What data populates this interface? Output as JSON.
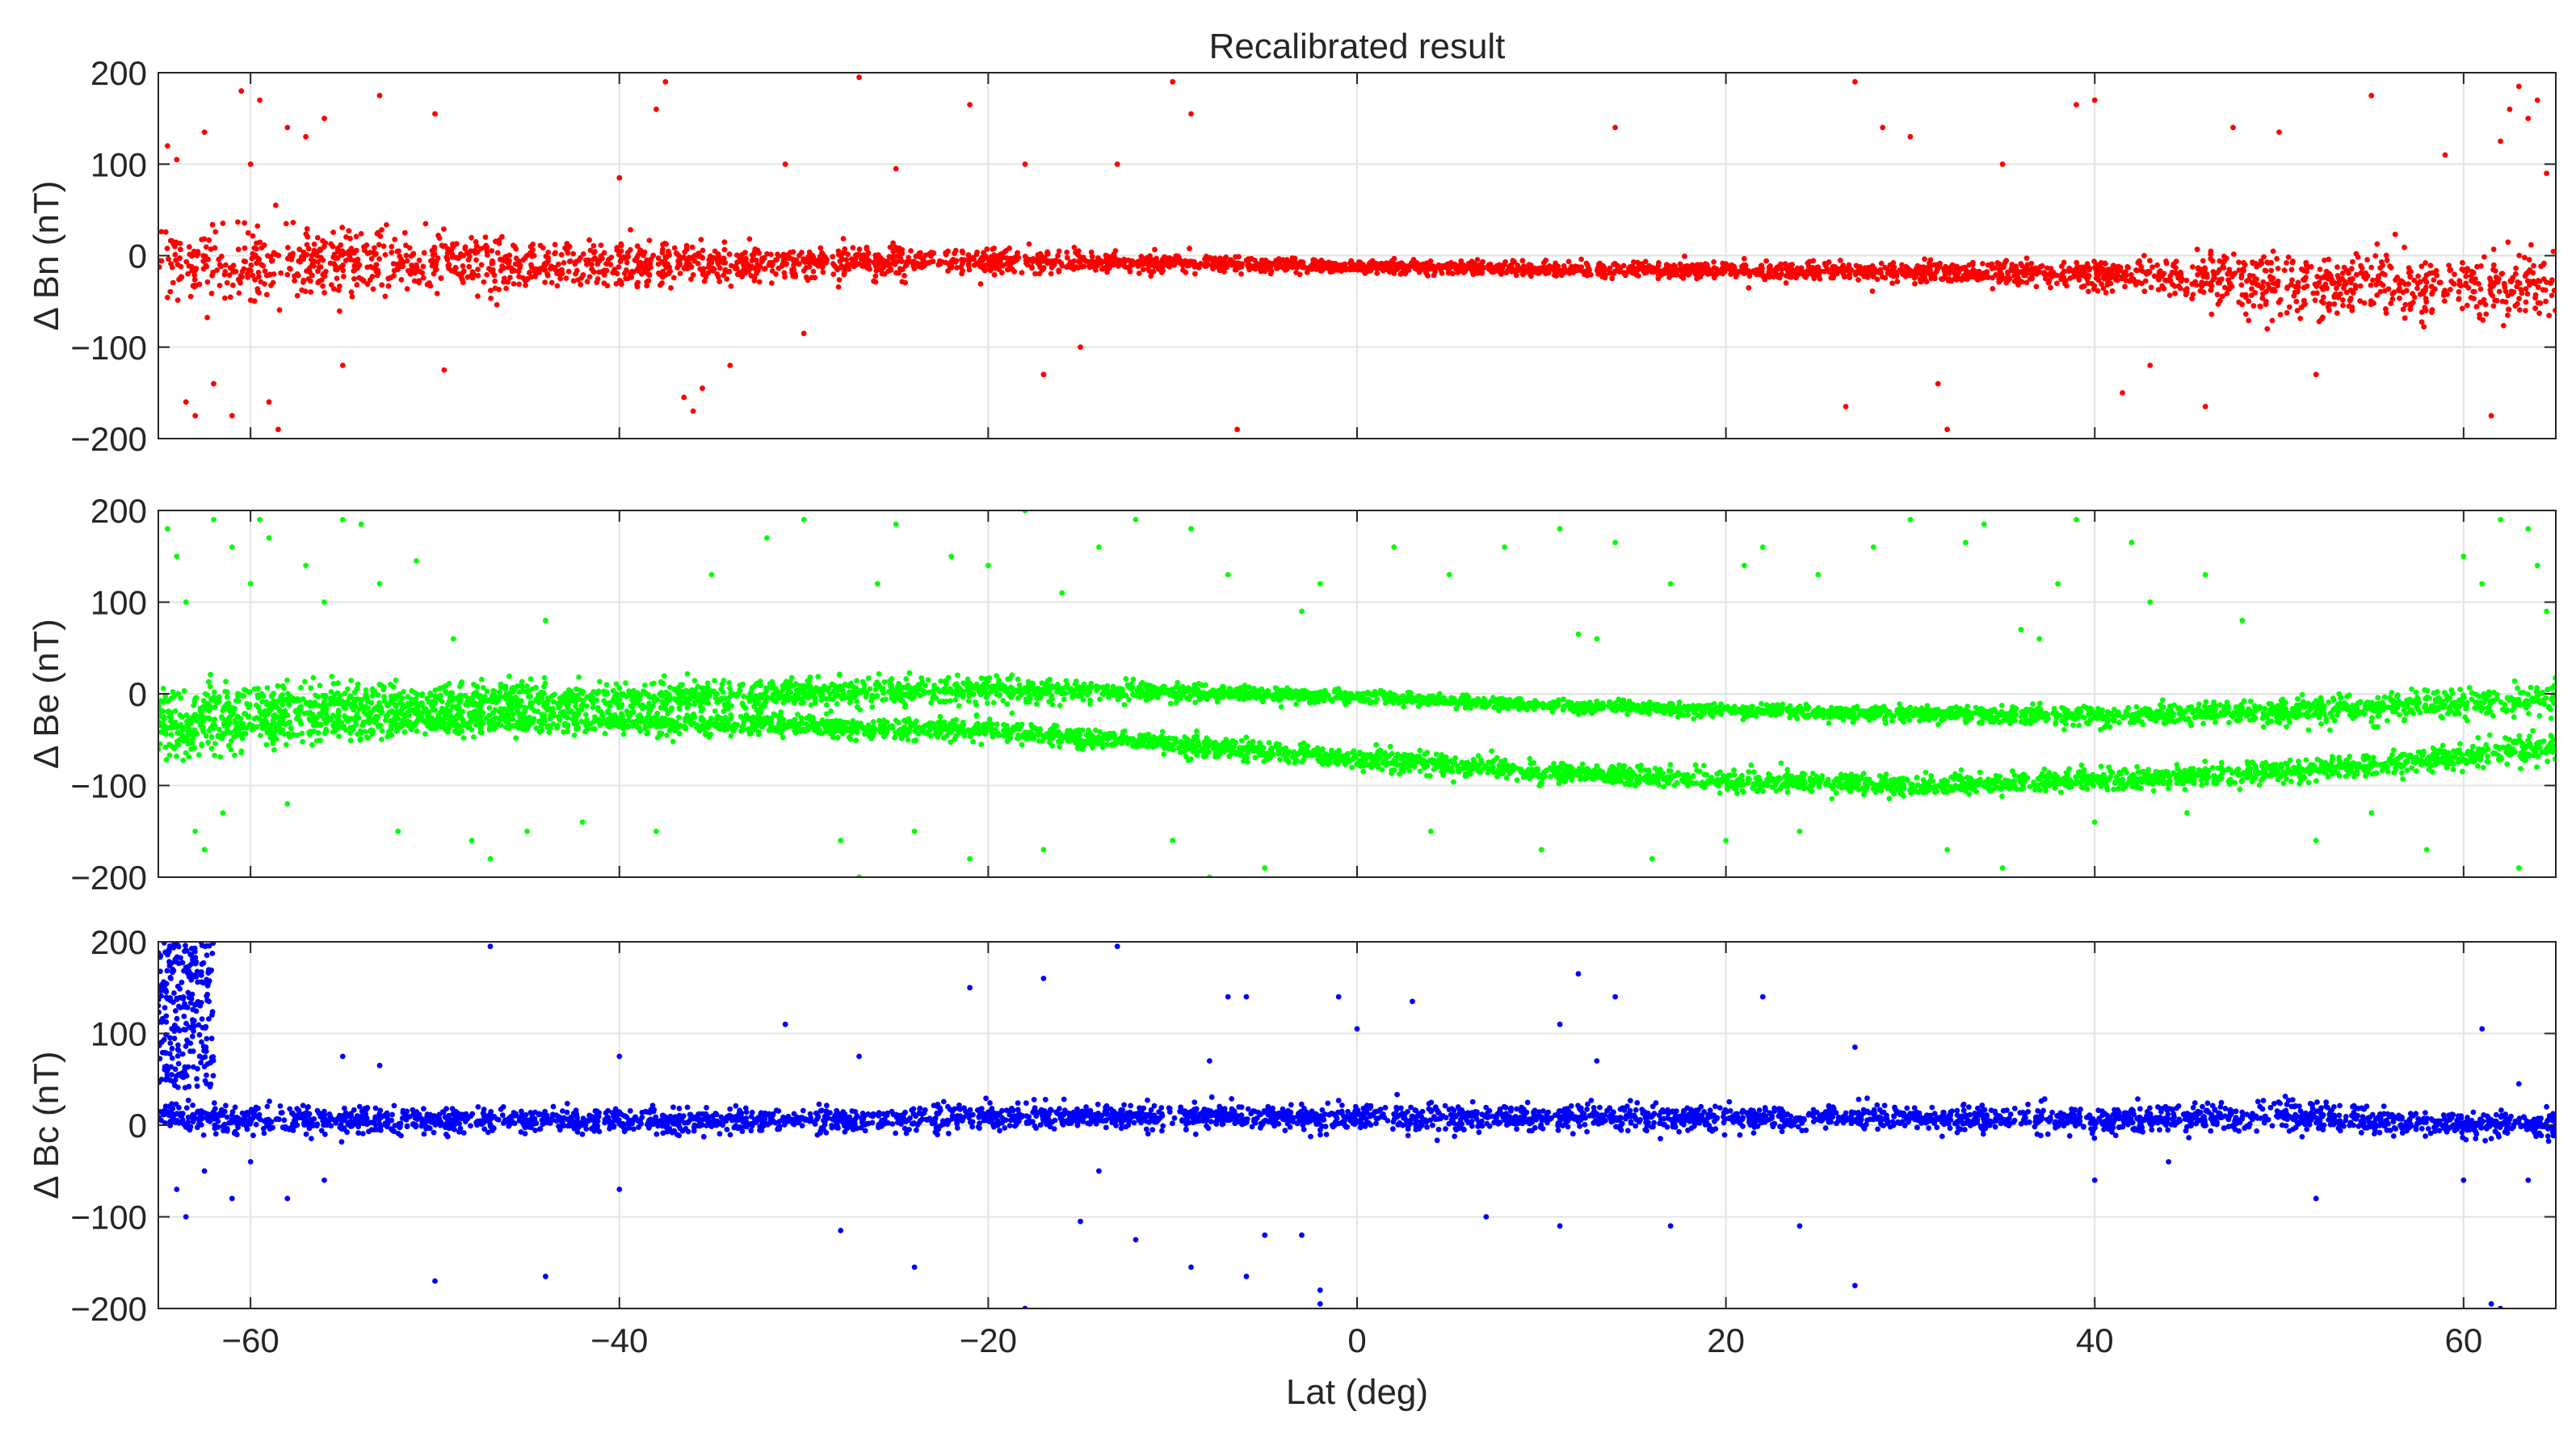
{
  "figure": {
    "title": "Recalibrated result",
    "xlabel": "Lat (deg)"
  },
  "chart_data": [
    {
      "type": "scatter",
      "title": "Recalibrated result",
      "xlabel": "",
      "ylabel": "Δ Bn (nT)",
      "xlim": [
        -65,
        65
      ],
      "ylim": [
        -200,
        200
      ],
      "xticks": [
        -60,
        -40,
        -20,
        0,
        20,
        40,
        60
      ],
      "xtick_labels": [
        "",
        "",
        "",
        "",
        "",
        "",
        ""
      ],
      "yticks": [
        -200,
        -100,
        0,
        100,
        200
      ],
      "ytick_labels": [
        "−200",
        "−100",
        "0",
        "100",
        "200"
      ],
      "grid": true,
      "color": "#ff0000",
      "series": [
        {
          "trend_lat": [
            -65,
            -60,
            -50,
            -40,
            -30,
            -20,
            -10,
            0,
            10,
            20,
            30,
            40,
            45,
            50,
            55,
            60,
            65
          ],
          "trend_center": [
            -12,
            -10,
            -8,
            -10,
            -8,
            -5,
            -8,
            -12,
            -15,
            -16,
            -18,
            -20,
            -25,
            -30,
            -30,
            -35,
            -30
          ],
          "band_halfwidth": [
            40,
            35,
            30,
            22,
            16,
            12,
            8,
            6,
            6,
            8,
            10,
            14,
            20,
            30,
            30,
            32,
            30
          ],
          "outliers": [
            [
              -64.5,
              120
            ],
            [
              -64,
              105
            ],
            [
              -63.5,
              -160
            ],
            [
              -63,
              -175
            ],
            [
              -62.5,
              135
            ],
            [
              -62,
              -140
            ],
            [
              -61,
              -175
            ],
            [
              -60.5,
              180
            ],
            [
              -60,
              100
            ],
            [
              -59.5,
              170
            ],
            [
              -59,
              -160
            ],
            [
              -58.5,
              -190
            ],
            [
              -58,
              140
            ],
            [
              -57,
              130
            ],
            [
              -56,
              150
            ],
            [
              -55,
              -120
            ],
            [
              -53,
              175
            ],
            [
              -50,
              155
            ],
            [
              -49.5,
              -125
            ],
            [
              -40,
              85
            ],
            [
              -38,
              160
            ],
            [
              -37.5,
              190
            ],
            [
              -36.5,
              -155
            ],
            [
              -36,
              -170
            ],
            [
              -35.5,
              -145
            ],
            [
              -34,
              -120
            ],
            [
              -31,
              100
            ],
            [
              -30,
              -85
            ],
            [
              -27,
              195
            ],
            [
              -25,
              95
            ],
            [
              -21,
              165
            ],
            [
              -18,
              100
            ],
            [
              -17,
              -130
            ],
            [
              -15,
              -100
            ],
            [
              -13,
              100
            ],
            [
              -10,
              190
            ],
            [
              -9,
              155
            ],
            [
              -6.5,
              -190
            ],
            [
              14,
              140
            ],
            [
              26.5,
              -165
            ],
            [
              27,
              190
            ],
            [
              28.5,
              140
            ],
            [
              30,
              130
            ],
            [
              31.5,
              -140
            ],
            [
              32,
              -190
            ],
            [
              35,
              100
            ],
            [
              39,
              165
            ],
            [
              40,
              170
            ],
            [
              41.5,
              -150
            ],
            [
              43,
              -120
            ],
            [
              46,
              -165
            ],
            [
              47.5,
              140
            ],
            [
              50,
              135
            ],
            [
              52,
              -130
            ],
            [
              55,
              175
            ],
            [
              59,
              110
            ],
            [
              61.5,
              -175
            ],
            [
              62,
              125
            ],
            [
              62.5,
              160
            ],
            [
              63,
              185
            ],
            [
              63.5,
              150
            ],
            [
              64,
              170
            ],
            [
              64.5,
              90
            ]
          ]
        }
      ]
    },
    {
      "type": "scatter",
      "title": "",
      "xlabel": "",
      "ylabel": "Δ Be (nT)",
      "xlim": [
        -65,
        65
      ],
      "ylim": [
        -200,
        200
      ],
      "xticks": [
        -60,
        -40,
        -20,
        0,
        20,
        40,
        60
      ],
      "xtick_labels": [
        "",
        "",
        "",
        "",
        "",
        "",
        ""
      ],
      "yticks": [
        -200,
        -100,
        0,
        100,
        200
      ],
      "ytick_labels": [
        "−200",
        "−100",
        "0",
        "100",
        "200"
      ],
      "grid": true,
      "color": "#00ff00",
      "series": [
        {
          "trend_lat": [
            -65,
            -60,
            -50,
            -40,
            -30,
            -20,
            -10,
            0,
            10,
            20,
            30,
            40,
            50,
            60,
            65
          ],
          "trend_center": [
            -25,
            -15,
            -8,
            -5,
            0,
            5,
            2,
            -3,
            -12,
            -18,
            -22,
            -25,
            -20,
            -10,
            -5
          ],
          "band_halfwidth": [
            35,
            25,
            18,
            16,
            14,
            12,
            8,
            6,
            6,
            6,
            7,
            9,
            12,
            14,
            18
          ]
        },
        {
          "trend_lat": [
            -65,
            -60,
            -50,
            -40,
            -30,
            -20,
            -10,
            0,
            10,
            20,
            30,
            40,
            50,
            60,
            65
          ],
          "trend_center": [
            -40,
            -35,
            -30,
            -30,
            -35,
            -40,
            -55,
            -70,
            -85,
            -95,
            -100,
            -95,
            -85,
            -70,
            -55
          ],
          "band_halfwidth": [
            30,
            22,
            14,
            12,
            10,
            10,
            10,
            10,
            10,
            10,
            10,
            10,
            10,
            12,
            18
          ]
        }
      ],
      "outliers": [
        [
          -64.5,
          180
        ],
        [
          -64,
          150
        ],
        [
          -63.5,
          100
        ],
        [
          -63,
          -150
        ],
        [
          -62.5,
          -170
        ],
        [
          -62,
          190
        ],
        [
          -61.5,
          -130
        ],
        [
          -61,
          160
        ],
        [
          -60,
          120
        ],
        [
          -59.5,
          190
        ],
        [
          -59,
          170
        ],
        [
          -58,
          -120
        ],
        [
          -57,
          140
        ],
        [
          -56,
          100
        ],
        [
          -55,
          190
        ],
        [
          -54,
          185
        ],
        [
          -53,
          120
        ],
        [
          -52,
          -150
        ],
        [
          -51,
          145
        ],
        [
          -49,
          60
        ],
        [
          -48,
          -160
        ],
        [
          -47,
          -180
        ],
        [
          -45,
          -150
        ],
        [
          -44,
          80
        ],
        [
          -42,
          -140
        ],
        [
          -38,
          -150
        ],
        [
          -35,
          130
        ],
        [
          -32,
          170
        ],
        [
          -30,
          190
        ],
        [
          -28,
          -160
        ],
        [
          -27,
          -200
        ],
        [
          -26,
          120
        ],
        [
          -25,
          185
        ],
        [
          -24,
          -150
        ],
        [
          -22,
          150
        ],
        [
          -21,
          -180
        ],
        [
          -20,
          140
        ],
        [
          -18,
          200
        ],
        [
          -17,
          -170
        ],
        [
          -16,
          110
        ],
        [
          -14,
          160
        ],
        [
          -12,
          190
        ],
        [
          -10,
          -160
        ],
        [
          -9,
          180
        ],
        [
          -8,
          -200
        ],
        [
          -7,
          130
        ],
        [
          -5,
          -190
        ],
        [
          -3,
          90
        ],
        [
          -2,
          120
        ],
        [
          2,
          160
        ],
        [
          4,
          -150
        ],
        [
          5,
          130
        ],
        [
          8,
          160
        ],
        [
          10,
          -170
        ],
        [
          11,
          180
        ],
        [
          12,
          65
        ],
        [
          13,
          60
        ],
        [
          14,
          165
        ],
        [
          16,
          -180
        ],
        [
          17,
          120
        ],
        [
          20,
          -160
        ],
        [
          21,
          140
        ],
        [
          22,
          160
        ],
        [
          24,
          -150
        ],
        [
          25,
          130
        ],
        [
          28,
          160
        ],
        [
          30,
          190
        ],
        [
          32,
          -170
        ],
        [
          33,
          165
        ],
        [
          34,
          185
        ],
        [
          35,
          -190
        ],
        [
          36,
          70
        ],
        [
          37,
          60
        ],
        [
          38,
          120
        ],
        [
          39,
          190
        ],
        [
          40,
          -140
        ],
        [
          42,
          165
        ],
        [
          43,
          100
        ],
        [
          45,
          -130
        ],
        [
          46,
          130
        ],
        [
          48,
          80
        ],
        [
          52,
          -160
        ],
        [
          55,
          -130
        ],
        [
          58,
          -170
        ],
        [
          60,
          150
        ],
        [
          61,
          120
        ],
        [
          62,
          190
        ],
        [
          63,
          -190
        ],
        [
          63.5,
          180
        ],
        [
          64,
          140
        ],
        [
          64.5,
          90
        ]
      ]
    },
    {
      "type": "scatter",
      "title": "",
      "xlabel": "Lat (deg)",
      "ylabel": "Δ Bc (nT)",
      "xlim": [
        -65,
        65
      ],
      "ylim": [
        -200,
        200
      ],
      "xticks": [
        -60,
        -40,
        -20,
        0,
        20,
        40,
        60
      ],
      "xtick_labels": [
        "−60",
        "−40",
        "−20",
        "0",
        "20",
        "40",
        "60"
      ],
      "yticks": [
        -200,
        -100,
        0,
        100,
        200
      ],
      "ytick_labels": [
        "−200",
        "−100",
        "0",
        "100",
        "200"
      ],
      "grid": true,
      "color": "#0000ff",
      "series": [
        {
          "trend_lat": [
            -65,
            -60,
            -50,
            -40,
            -30,
            -20,
            -10,
            0,
            10,
            20,
            30,
            40,
            50,
            60,
            65
          ],
          "trend_center": [
            10,
            5,
            5,
            5,
            5,
            8,
            10,
            8,
            8,
            8,
            8,
            5,
            10,
            0,
            0
          ],
          "band_halfwidth": [
            15,
            15,
            12,
            12,
            12,
            12,
            12,
            12,
            12,
            12,
            12,
            12,
            14,
            12,
            12
          ]
        }
      ],
      "cluster": {
        "lat_range": [
          -65,
          -62
        ],
        "value_range": [
          40,
          200
        ],
        "note": ""
      },
      "outliers": [
        [
          -64.5,
          60
        ],
        [
          -64,
          -70
        ],
        [
          -63.5,
          -100
        ],
        [
          -62.5,
          -50
        ],
        [
          -61,
          -80
        ],
        [
          -60,
          -40
        ],
        [
          -58,
          -80
        ],
        [
          -56,
          -60
        ],
        [
          -55,
          75
        ],
        [
          -53,
          65
        ],
        [
          -50,
          -170
        ],
        [
          -47,
          195
        ],
        [
          -44,
          -165
        ],
        [
          -40,
          75
        ],
        [
          -40,
          -70
        ],
        [
          -31,
          110
        ],
        [
          -28,
          -115
        ],
        [
          -27,
          75
        ],
        [
          -24,
          -155
        ],
        [
          -21,
          150
        ],
        [
          -18,
          -200
        ],
        [
          -17,
          160
        ],
        [
          -15,
          -105
        ],
        [
          -14,
          -50
        ],
        [
          -13,
          195
        ],
        [
          -12,
          -125
        ],
        [
          -9,
          -155
        ],
        [
          -8,
          70
        ],
        [
          -7,
          140
        ],
        [
          -6,
          140
        ],
        [
          -6,
          -165
        ],
        [
          -5,
          -120
        ],
        [
          -3,
          -120
        ],
        [
          -2,
          -180
        ],
        [
          -2,
          -195
        ],
        [
          -1,
          140
        ],
        [
          0,
          105
        ],
        [
          3,
          135
        ],
        [
          7,
          -100
        ],
        [
          11,
          110
        ],
        [
          11,
          -110
        ],
        [
          12,
          165
        ],
        [
          13,
          70
        ],
        [
          14,
          140
        ],
        [
          17,
          -110
        ],
        [
          22,
          140
        ],
        [
          24,
          -110
        ],
        [
          27,
          85
        ],
        [
          27,
          -175
        ],
        [
          40,
          -60
        ],
        [
          44,
          -40
        ],
        [
          52,
          -80
        ],
        [
          60,
          -60
        ],
        [
          61,
          105
        ],
        [
          61.5,
          -195
        ],
        [
          62,
          -200
        ],
        [
          63,
          45
        ],
        [
          63.5,
          -60
        ],
        [
          64.5,
          20
        ]
      ]
    }
  ]
}
